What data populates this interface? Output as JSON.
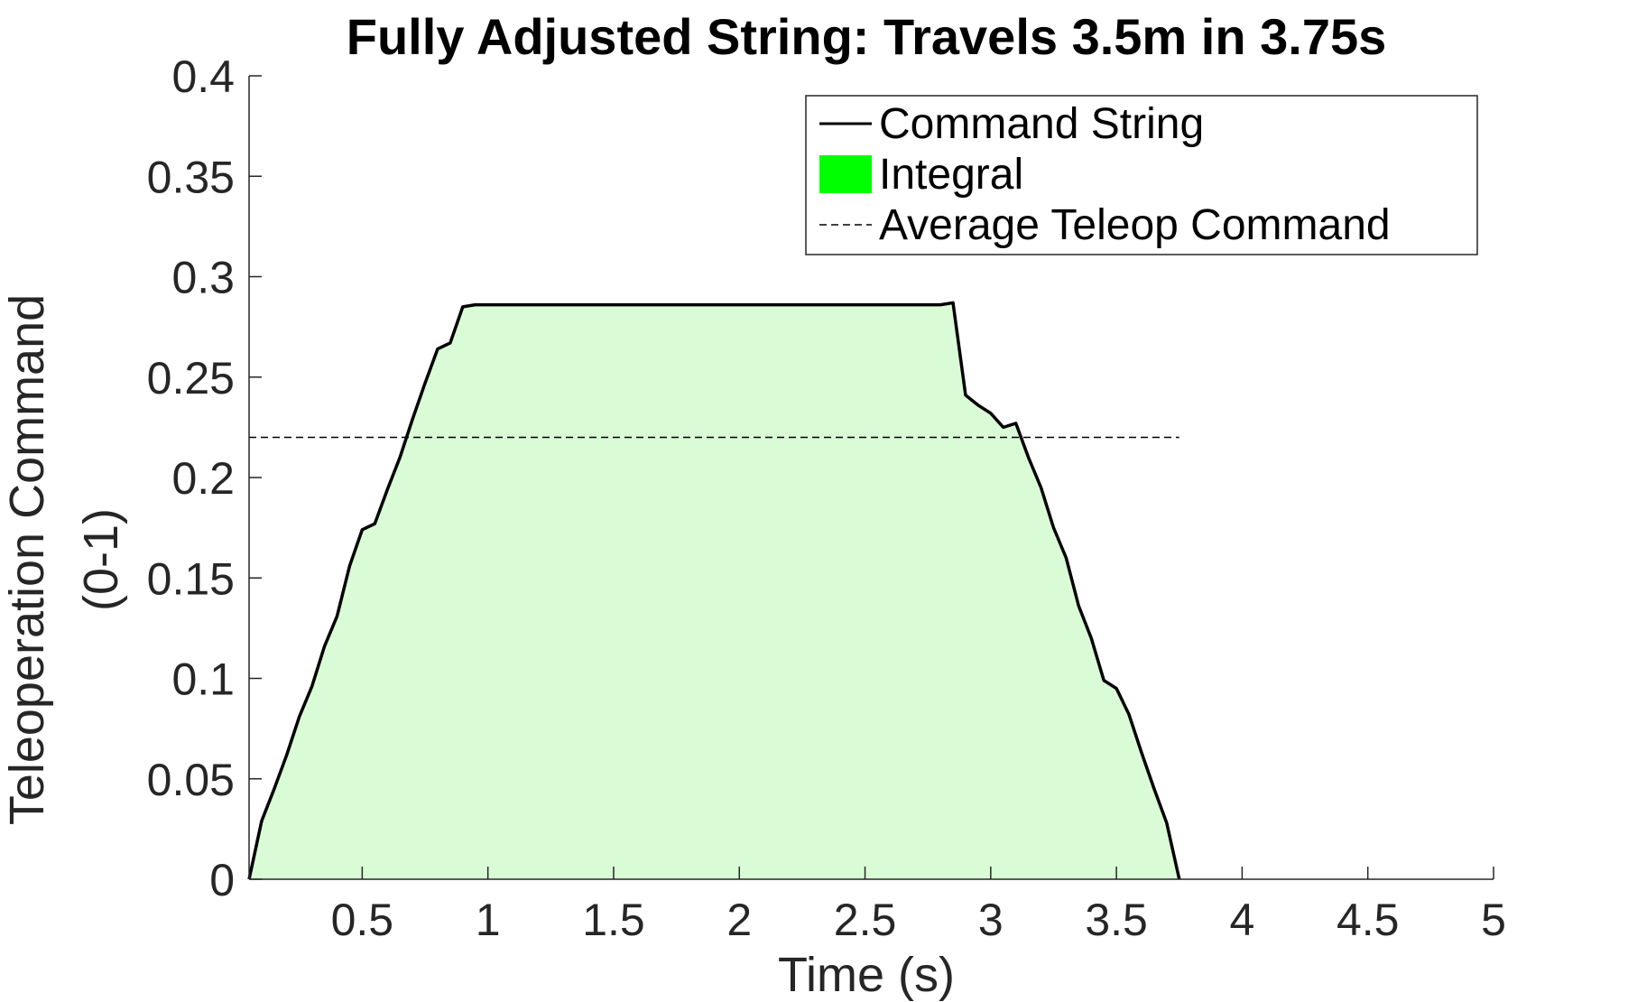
{
  "chart_data": {
    "type": "area",
    "title": "Fully Adjusted String: Travels 3.5m in 3.75s",
    "xlabel": "Time (s)",
    "ylabel_line1": "Teleoperation Command",
    "ylabel_line2": "(0-1)",
    "xlim": [
      0.05,
      5
    ],
    "ylim": [
      0,
      0.4
    ],
    "xticks": [
      0.5,
      1,
      1.5,
      2,
      2.5,
      3,
      3.5,
      4,
      4.5,
      5
    ],
    "xtick_labels": [
      "0.5",
      "1",
      "1.5",
      "2",
      "2.5",
      "3",
      "3.5",
      "4",
      "4.5",
      "5"
    ],
    "yticks": [
      0,
      0.05,
      0.1,
      0.15,
      0.2,
      0.25,
      0.3,
      0.35,
      0.4
    ],
    "ytick_labels": [
      "0",
      "0.05",
      "0.1",
      "0.15",
      "0.2",
      "0.25",
      "0.3",
      "0.35",
      "0.4"
    ],
    "grid": false,
    "legend_position": "top-right",
    "series": [
      {
        "name": "Command String",
        "style": "solid",
        "color": "#000000",
        "x": [
          0.05,
          0.1,
          0.15,
          0.2,
          0.25,
          0.3,
          0.35,
          0.4,
          0.45,
          0.5,
          0.55,
          0.6,
          0.65,
          0.7,
          0.75,
          0.8,
          0.85,
          0.9,
          0.95,
          1.0,
          1.5,
          2.0,
          2.5,
          2.8,
          2.85,
          2.9,
          2.95,
          3.0,
          3.05,
          3.1,
          3.15,
          3.2,
          3.25,
          3.3,
          3.35,
          3.4,
          3.45,
          3.5,
          3.55,
          3.6,
          3.65,
          3.7,
          3.75
        ],
        "y": [
          0,
          0.029,
          0.045,
          0.062,
          0.081,
          0.096,
          0.116,
          0.131,
          0.156,
          0.174,
          0.177,
          0.194,
          0.21,
          0.229,
          0.247,
          0.264,
          0.267,
          0.285,
          0.286,
          0.286,
          0.286,
          0.286,
          0.286,
          0.286,
          0.287,
          0.241,
          0.236,
          0.232,
          0.225,
          0.227,
          0.21,
          0.195,
          0.175,
          0.16,
          0.136,
          0.12,
          0.099,
          0.095,
          0.082,
          0.063,
          0.045,
          0.028,
          0
        ]
      },
      {
        "name": "Integral",
        "style": "fill",
        "color": "#00ff00",
        "fill_color": "#d9fbd6"
      },
      {
        "name": "Average Teleop Command",
        "style": "dashed",
        "color": "#000000",
        "x": [
          0.05,
          3.75
        ],
        "y": [
          0.22,
          0.22
        ]
      }
    ]
  }
}
